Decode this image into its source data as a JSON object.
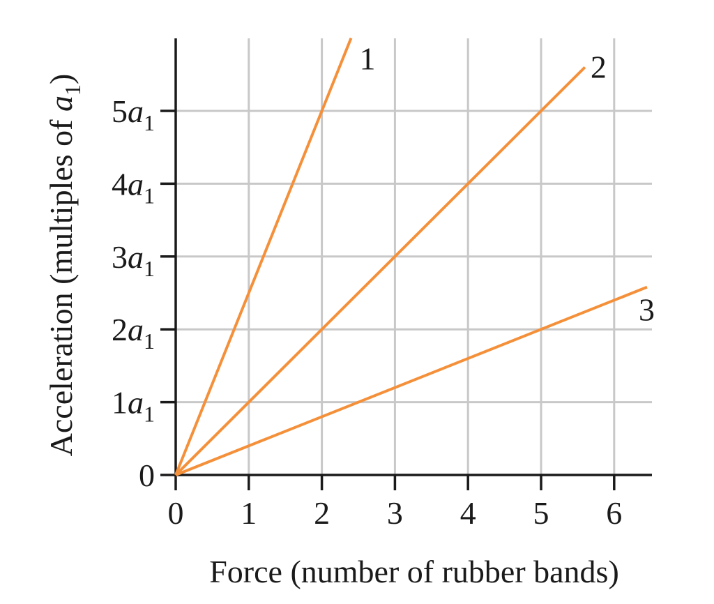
{
  "chart_data": {
    "type": "line",
    "title": "",
    "xlabel": "Force (number of rubber bands)",
    "ylabel": "Acceleration (multiples of a₁)",
    "xlim": [
      0,
      6.5
    ],
    "ylim": [
      0,
      6
    ],
    "grid": true,
    "legend": "inline labels at line ends",
    "x_ticks": [
      "0",
      "1",
      "2",
      "3",
      "4",
      "5",
      "6"
    ],
    "y_ticks": [
      {
        "value": 0,
        "label": "0"
      },
      {
        "value": 1,
        "label": "1a₁"
      },
      {
        "value": 2,
        "label": "2a₁"
      },
      {
        "value": 3,
        "label": "3a₁"
      },
      {
        "value": 4,
        "label": "4a₁"
      },
      {
        "value": 5,
        "label": "5a₁"
      }
    ],
    "series": [
      {
        "name": "1",
        "slope": 2.5,
        "x": [
          0,
          2.4
        ],
        "y": [
          0,
          6.0
        ]
      },
      {
        "name": "2",
        "slope": 1.0,
        "x": [
          0,
          5.6
        ],
        "y": [
          0,
          5.6
        ]
      },
      {
        "name": "3",
        "slope": 0.4,
        "x": [
          0,
          6.45
        ],
        "y": [
          0,
          2.58
        ]
      }
    ],
    "colors": {
      "line": "#f5903a",
      "grid": "#c8c8c8",
      "axis": "#1a1a1a"
    }
  }
}
